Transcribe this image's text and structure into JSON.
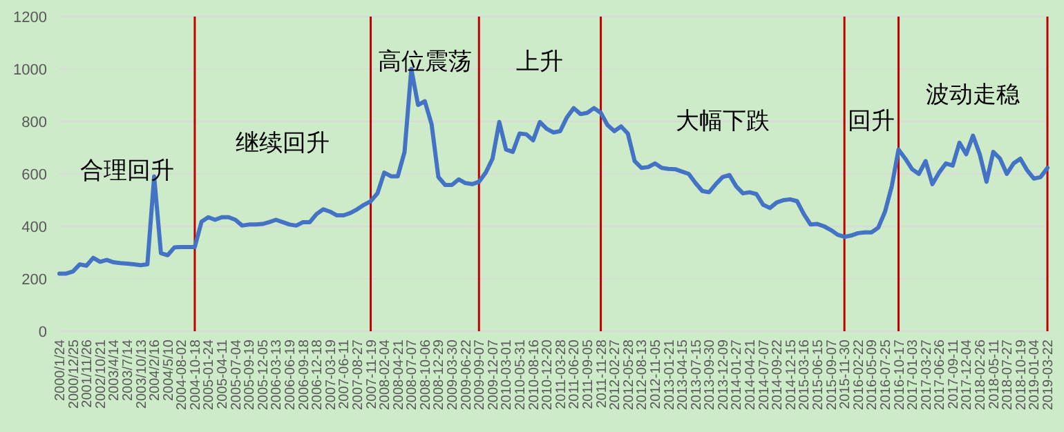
{
  "chart_data": {
    "type": "line",
    "categories": [
      "2000/1/24",
      null,
      "2000/12/25",
      null,
      "2001/11/26",
      null,
      "2002/10/21",
      null,
      "2003/4/14",
      null,
      "2003/7/14",
      null,
      "2003/10/13",
      null,
      "2004/2/16",
      null,
      "2004/5/10",
      null,
      "2004-08-02",
      null,
      "2004-10-18",
      null,
      "2005-01-24",
      null,
      "2005-04-11",
      null,
      "2005-07-04",
      null,
      "2005-09-19",
      null,
      "2005-12-05",
      null,
      "2006-03-13",
      null,
      "2006-06-19",
      null,
      "2006-09-18",
      null,
      "2006-12-18",
      null,
      "2007-03-19",
      null,
      "2007-06-11",
      null,
      "2007-08-27",
      null,
      "2007-11-19",
      null,
      "2008-02-04",
      null,
      "2008-04-21",
      null,
      "2008-07-07",
      null,
      "2008-10-06",
      null,
      "2008-12-29",
      null,
      "2009-03-30",
      null,
      "2009-06-22",
      null,
      "2009-09-07",
      null,
      "2009-12-07",
      null,
      "2010-03-01",
      null,
      "2010-05-31",
      null,
      "2010-08-16",
      null,
      "2010-12-20",
      null,
      "2011-03-28",
      null,
      "2011-06-20",
      null,
      "2011-09-05",
      null,
      "2011-11-28",
      null,
      "2012-02-27",
      null,
      "2012-05-28",
      null,
      "2012-08-13",
      null,
      "2012-11-05",
      null,
      "2013-01-21",
      null,
      "2013-04-15",
      null,
      "2013-07-15",
      null,
      "2013-09-30",
      null,
      "2013-12-09",
      null,
      "2014-01-27",
      null,
      "2014-04-21",
      null,
      "2014-07-07",
      null,
      "2014-09-22",
      null,
      "2014-12-15",
      null,
      "2015-03-16",
      null,
      "2015-06-15",
      null,
      "2015-09-07",
      null,
      "2015-11-30",
      null,
      "2016-02-22",
      null,
      "2016-05-09",
      null,
      "2016-07-25",
      null,
      "2016-10-17",
      null,
      "2017-01-03",
      null,
      "2017-03-27",
      null,
      "2017-06-26",
      null,
      "2017-09-11",
      null,
      "2017-12-04",
      null,
      "2018-02-26",
      null,
      "2018-05-11",
      null,
      "2018-07-27",
      null,
      "2018-10-19",
      null,
      "2019-01-04",
      null,
      "2019-03-22"
    ],
    "series": [
      {
        "color": "#4472c4",
        "values": [
          220,
          220,
          228,
          255,
          250,
          280,
          265,
          272,
          263,
          260,
          258,
          255,
          252,
          255,
          590,
          298,
          290,
          320,
          321,
          321,
          321,
          418,
          435,
          425,
          435,
          435,
          425,
          403,
          407,
          407,
          409,
          416,
          425,
          416,
          407,
          403,
          416,
          416,
          447,
          465,
          456,
          442,
          442,
          451,
          465,
          482,
          496,
          526,
          605,
          591,
          591,
          684,
          1000,
          863,
          877,
          789,
          588,
          558,
          558,
          579,
          565,
          561,
          570,
          605,
          658,
          798,
          693,
          684,
          754,
          751,
          728,
          798,
          772,
          758,
          763,
          816,
          851,
          828,
          833,
          851,
          833,
          786,
          763,
          781,
          754,
          649,
          623,
          626,
          640,
          623,
          619,
          618,
          609,
          600,
          565,
          535,
          530,
          561,
          588,
          596,
          553,
          526,
          530,
          523,
          482,
          470,
          491,
          500,
          503,
          496,
          447,
          407,
          409,
          400,
          386,
          368,
          360,
          365,
          374,
          377,
          377,
          395,
          456,
          553,
          693,
          658,
          618,
          600,
          649,
          561,
          605,
          640,
          632,
          719,
          675,
          746,
          675,
          570,
          684,
          658,
          600,
          640,
          658,
          614,
          582,
          588,
          623
        ]
      }
    ],
    "ylim": [
      0,
      1200
    ],
    "yticks": [
      0,
      200,
      400,
      600,
      800,
      1000,
      1200
    ],
    "grid": "y",
    "marker": "none",
    "line_style": "solid",
    "ref_lines": [
      {
        "axis": "x",
        "value": "2004-10-18",
        "color": "#c00000"
      },
      {
        "axis": "x",
        "value": "2007-11-19",
        "color": "#c00000"
      },
      {
        "axis": "x",
        "value": "2009-09-07",
        "color": "#c00000"
      },
      {
        "axis": "x",
        "value": "2011-11-28",
        "color": "#c00000"
      },
      {
        "axis": "x",
        "value": "2015-11-30",
        "color": "#c00000"
      },
      {
        "axis": "x",
        "value": "2016-10-17",
        "color": "#c00000"
      },
      {
        "axis": "x",
        "value": "2019-03-22",
        "color": "#c00000"
      }
    ],
    "annotations": [
      "合理回升",
      "继续回升",
      "高位震荡",
      "上升",
      "大幅下跌",
      "回升",
      "波动走稳"
    ]
  }
}
